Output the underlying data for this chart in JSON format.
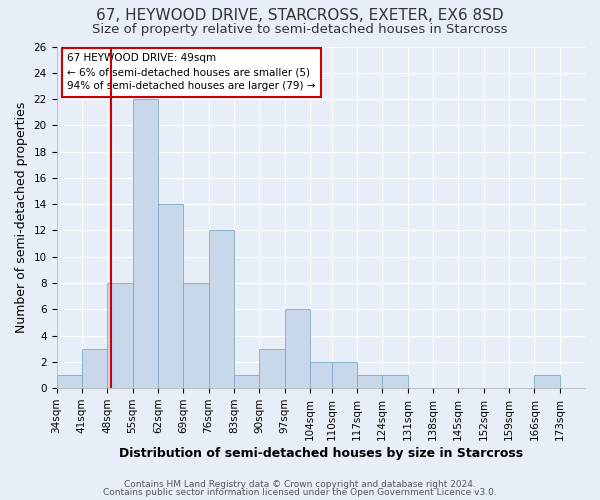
{
  "title": "67, HEYWOOD DRIVE, STARCROSS, EXETER, EX6 8SD",
  "subtitle": "Size of property relative to semi-detached houses in Starcross",
  "xlabel": "Distribution of semi-detached houses by size in Starcross",
  "ylabel": "Number of semi-detached properties",
  "bin_edges": [
    34,
    41,
    48,
    55,
    62,
    69,
    76,
    83,
    90,
    97,
    104,
    110,
    117,
    124,
    131,
    138,
    145,
    152,
    159,
    166,
    173
  ],
  "counts": [
    1,
    3,
    8,
    22,
    14,
    8,
    12,
    1,
    3,
    6,
    2,
    2,
    1,
    1,
    0,
    0,
    0,
    0,
    0,
    1
  ],
  "bar_color": "#c8d8ea",
  "bar_edge_color": "#7aaac8",
  "property_line_x": 49,
  "property_line_color": "#cc0000",
  "ylim": [
    0,
    26
  ],
  "yticks": [
    0,
    2,
    4,
    6,
    8,
    10,
    12,
    14,
    16,
    18,
    20,
    22,
    24,
    26
  ],
  "tick_labels": [
    "34sqm",
    "41sqm",
    "48sqm",
    "55sqm",
    "62sqm",
    "69sqm",
    "76sqm",
    "83sqm",
    "90sqm",
    "97sqm",
    "104sqm",
    "110sqm",
    "117sqm",
    "124sqm",
    "131sqm",
    "138sqm",
    "145sqm",
    "152sqm",
    "159sqm",
    "166sqm",
    "173sqm"
  ],
  "annotation_title": "67 HEYWOOD DRIVE: 49sqm",
  "annotation_line1": "← 6% of semi-detached houses are smaller (5)",
  "annotation_line2": "94% of semi-detached houses are larger (79) →",
  "annotation_box_color": "#ffffff",
  "annotation_box_edge_color": "#cc0000",
  "footer_line1": "Contains HM Land Registry data © Crown copyright and database right 2024.",
  "footer_line2": "Contains public sector information licensed under the Open Government Licence v3.0.",
  "background_color": "#e8eef8",
  "grid_color": "#ffffff",
  "title_fontsize": 11,
  "subtitle_fontsize": 9.5,
  "axis_label_fontsize": 9,
  "tick_fontsize": 7.5,
  "annotation_fontsize": 7.5,
  "footer_fontsize": 6.5
}
